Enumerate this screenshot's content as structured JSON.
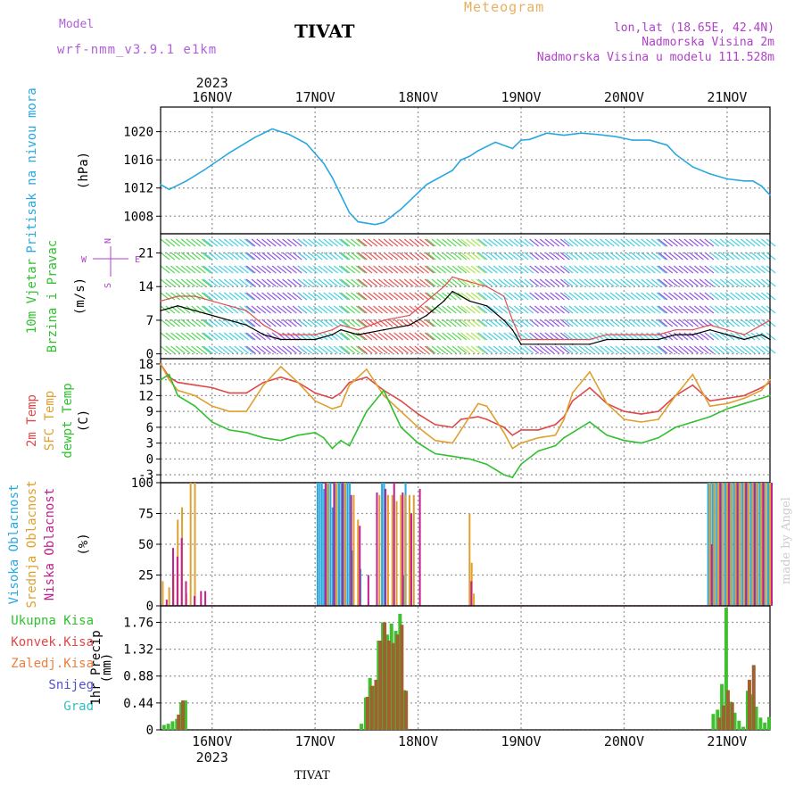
{
  "header": {
    "model_label": "Model",
    "model_name": "wrf-nmm_v3.9.1 e1km",
    "station": "TIVAT",
    "meteogram": "Meteogram",
    "lonlat": "lon,lat (18.65E, 42.4N)",
    "elevation": "Nadmorska Visina 2m",
    "model_elevation": "Nadmorska Visina u modelu 111.528m",
    "credit": "made by Angel",
    "footer_station": "TIVAT"
  },
  "time_axis": {
    "year": "2023",
    "days": [
      "16NOV",
      "17NOV",
      "18NOV",
      "19NOV",
      "20NOV",
      "21NOV"
    ],
    "range_hours": [
      -12,
      130
    ]
  },
  "colors": {
    "pressure": "#29a8e0",
    "wind_speed": "#000000",
    "wind_gust": "#e05050",
    "temp_2m": "#e04848",
    "temp_sfc": "#e0a030",
    "dewpoint": "#30c030",
    "cloud_high": "#29a8e0",
    "cloud_mid": "#e0a030",
    "cloud_low": "#c02090",
    "precip_total": "#40c030",
    "precip_conv": "#a06030",
    "grid": "#999999"
  },
  "chart_data": [
    {
      "type": "line",
      "panel": "pressure",
      "ylabel_lines": [
        "Pritisak na nivou mora"
      ],
      "unit": "(hPa)",
      "ylim": [
        1005.5,
        1023.5
      ],
      "yticks": [
        1008,
        1012,
        1016,
        1020
      ],
      "series": [
        {
          "name": "Pritisak na nivou mora",
          "x": [
            -12,
            -10,
            -6,
            -2,
            4,
            10,
            14,
            18,
            22,
            26,
            28,
            30,
            32,
            34,
            38,
            40,
            44,
            50,
            56,
            58,
            60,
            62,
            66,
            70,
            72,
            74,
            78,
            82,
            86,
            90,
            94,
            98,
            102,
            106,
            108,
            112,
            116,
            120,
            124,
            126,
            128,
            130
          ],
          "y": [
            1012.5,
            1011.8,
            1013,
            1014.5,
            1017,
            1019.2,
            1020.4,
            1019.6,
            1018.3,
            1015.5,
            1013.5,
            1011,
            1008.5,
            1007.2,
            1006.8,
            1007.1,
            1009,
            1012.5,
            1014.5,
            1016,
            1016.5,
            1017.3,
            1018.5,
            1017.6,
            1018.8,
            1018.9,
            1019.8,
            1019.5,
            1019.8,
            1019.6,
            1019.3,
            1018.8,
            1018.8,
            1018.1,
            1016.8,
            1015,
            1014,
            1013.3,
            1013,
            1013,
            1012.3,
            1011
          ]
        }
      ]
    },
    {
      "type": "line",
      "panel": "wind",
      "ylabel_lines": [
        "10m Vjetar",
        "Brzina i Pravac"
      ],
      "unit": "(m/s)",
      "compass": [
        "N",
        "W",
        "E",
        "S"
      ],
      "ylim": [
        -1,
        25
      ],
      "yticks": [
        0,
        7,
        14,
        21
      ],
      "series": [
        {
          "name": "speed",
          "x": [
            -12,
            -8,
            -4,
            0,
            4,
            8,
            12,
            16,
            20,
            24,
            28,
            30,
            34,
            40,
            46,
            50,
            54,
            56,
            60,
            64,
            68,
            70,
            72,
            76,
            80,
            84,
            88,
            92,
            96,
            100,
            104,
            108,
            112,
            116,
            120,
            124,
            128,
            130
          ],
          "y": [
            9,
            10,
            9,
            8,
            7,
            6,
            4,
            3,
            3,
            3,
            4,
            5,
            4,
            5,
            6,
            8,
            11,
            13,
            11,
            10,
            7,
            5,
            2,
            2,
            2,
            2,
            2,
            3,
            3,
            3,
            3,
            4,
            4,
            5,
            4,
            3,
            4,
            3
          ]
        },
        {
          "name": "gust",
          "x": [
            -12,
            -8,
            -4,
            0,
            4,
            8,
            12,
            16,
            20,
            24,
            28,
            30,
            34,
            40,
            46,
            50,
            54,
            56,
            60,
            64,
            68,
            70,
            72,
            76,
            80,
            84,
            88,
            92,
            96,
            100,
            104,
            108,
            112,
            116,
            120,
            124,
            128,
            130
          ],
          "y": [
            11,
            12,
            12,
            11,
            10,
            9,
            6,
            4,
            4,
            4,
            5,
            6,
            5,
            7,
            8,
            11,
            14,
            16,
            15,
            14,
            12,
            7,
            3,
            3,
            3,
            3,
            3,
            4,
            4,
            4,
            4,
            5,
            5,
            6,
            5,
            4,
            6,
            7
          ]
        }
      ]
    },
    {
      "type": "line",
      "panel": "temperature",
      "ylabel_lines": [
        "2m Temp",
        "SFC Temp",
        "dewpt Temp"
      ],
      "unit": "(C)",
      "ylim": [
        -4.5,
        19
      ],
      "yticks": [
        -3,
        0,
        3,
        6,
        9,
        12,
        15,
        18
      ],
      "series": [
        {
          "name": "2m Temp",
          "x": [
            -12,
            -10,
            -8,
            -4,
            0,
            4,
            8,
            12,
            16,
            20,
            24,
            28,
            30,
            32,
            36,
            40,
            44,
            48,
            52,
            56,
            58,
            62,
            64,
            68,
            70,
            72,
            76,
            80,
            82,
            84,
            88,
            92,
            96,
            100,
            104,
            108,
            112,
            116,
            120,
            124,
            128,
            130
          ],
          "y": [
            18,
            15.5,
            14.5,
            14,
            13.5,
            12.5,
            12.5,
            14.5,
            15.5,
            14.5,
            12.5,
            11.5,
            12.5,
            14.5,
            15.5,
            13,
            11,
            8.5,
            6.5,
            6,
            7.5,
            8,
            7.5,
            6,
            4.5,
            5.5,
            5.5,
            6.5,
            8,
            11,
            13.5,
            10.5,
            9,
            8.5,
            9,
            12,
            14,
            11,
            11.5,
            12,
            13.5,
            14.5
          ]
        },
        {
          "name": "SFC Temp",
          "x": [
            -12,
            -10,
            -8,
            -4,
            0,
            4,
            8,
            12,
            16,
            20,
            24,
            28,
            30,
            32,
            36,
            40,
            44,
            48,
            52,
            56,
            58,
            62,
            64,
            68,
            70,
            72,
            76,
            80,
            82,
            84,
            88,
            92,
            96,
            100,
            104,
            108,
            112,
            116,
            120,
            124,
            128,
            130
          ],
          "y": [
            18,
            15,
            13,
            12,
            10,
            9,
            9,
            14,
            17.5,
            14.5,
            11,
            9.5,
            10,
            14,
            17,
            12,
            9,
            6,
            3.5,
            3,
            5.5,
            10.5,
            10,
            5,
            2,
            3,
            4,
            4.5,
            7.5,
            12.5,
            16.5,
            10.5,
            7.5,
            7,
            7.5,
            12,
            16,
            10,
            10.5,
            11.5,
            13,
            15
          ]
        },
        {
          "name": "dewpt Temp",
          "x": [
            -12,
            -10,
            -8,
            -4,
            0,
            4,
            8,
            12,
            16,
            20,
            24,
            26,
            28,
            30,
            32,
            36,
            40,
            44,
            48,
            52,
            56,
            60,
            64,
            68,
            70,
            72,
            76,
            80,
            82,
            84,
            88,
            92,
            96,
            100,
            104,
            108,
            112,
            116,
            120,
            124,
            128,
            130
          ],
          "y": [
            15,
            16,
            12,
            10,
            7,
            5.5,
            5,
            4,
            3.5,
            4.5,
            5,
            4,
            2,
            3.5,
            2.5,
            9,
            13,
            6,
            3,
            1,
            0.5,
            0,
            -1,
            -3,
            -3.5,
            -1,
            1.5,
            2.5,
            4,
            5,
            7,
            4.5,
            3.5,
            3,
            4,
            6,
            7,
            8,
            9.5,
            10.5,
            11.5,
            12
          ]
        }
      ]
    },
    {
      "type": "bar",
      "panel": "clouds",
      "ylabel_lines": [
        "Visoka Oblacnost",
        "Srednja Oblacnost",
        "Niska Oblacnost"
      ],
      "unit": "(%)",
      "ylim": [
        0,
        100
      ],
      "yticks": [
        0,
        25,
        50,
        75,
        100
      ],
      "series": [
        {
          "name": "Visoka Oblacnost",
          "x": [
            25,
            25.5,
            26,
            26.5,
            27,
            27.5,
            28,
            28.5,
            29,
            29.5,
            30,
            30.5,
            31,
            31.5,
            32,
            32.5,
            33,
            35,
            40,
            40.5,
            45,
            45.5,
            116,
            116.5,
            117,
            117.5,
            118,
            118.5,
            119,
            119.5,
            120,
            120.5,
            121,
            121.5,
            122,
            122.5,
            123,
            123.5,
            124,
            124.5,
            125,
            125.5,
            126,
            126.5,
            127,
            127.5,
            128,
            128.5,
            129,
            129.5,
            130
          ],
          "y": [
            100,
            100,
            100,
            95,
            100,
            100,
            100,
            80,
            100,
            100,
            100,
            100,
            100,
            100,
            100,
            100,
            45,
            30,
            100,
            100,
            25,
            100,
            100,
            100,
            100,
            100,
            100,
            100,
            100,
            100,
            100,
            100,
            100,
            100,
            100,
            100,
            100,
            100,
            100,
            100,
            100,
            100,
            100,
            100,
            100,
            100,
            100,
            100,
            100,
            100,
            100
          ]
        },
        {
          "name": "Srednja Oblacnost",
          "x": [
            -11.5,
            -10,
            -9,
            -8,
            -7,
            -6,
            -5,
            -4,
            27,
            29,
            31,
            33,
            34,
            39,
            41,
            42,
            43,
            44,
            45,
            46,
            47,
            60,
            60.5,
            61,
            116,
            117,
            118,
            119,
            120,
            121,
            122,
            123,
            124,
            125,
            126,
            127,
            128,
            129,
            130
          ],
          "y": [
            20,
            15,
            25,
            70,
            80,
            10,
            100,
            100,
            100,
            100,
            100,
            90,
            70,
            90,
            90,
            90,
            85,
            90,
            90,
            90,
            90,
            75,
            35,
            10,
            100,
            100,
            100,
            100,
            100,
            100,
            100,
            100,
            100,
            100,
            100,
            100,
            100,
            100,
            100
          ]
        },
        {
          "name": "Niska Oblacnost",
          "x": [
            -11,
            -9.5,
            -8.5,
            -7.5,
            -6.5,
            -4.5,
            -3,
            -2,
            26,
            28,
            30,
            32,
            34,
            36,
            38,
            40,
            42,
            44,
            46,
            48,
            60,
            116,
            118,
            120,
            122,
            124,
            126,
            128,
            130
          ],
          "y": [
            5,
            47,
            40,
            55,
            20,
            8,
            12,
            12,
            100,
            100,
            100,
            90,
            65,
            25,
            92,
            95,
            100,
            92,
            75,
            95,
            20,
            50,
            100,
            100,
            100,
            100,
            100,
            100,
            100
          ]
        }
      ]
    },
    {
      "type": "bar",
      "panel": "precipitation",
      "ylabel_lines": [
        "1hr Precip"
      ],
      "unit": "(mm)",
      "legend": [
        "Ukupna Kisa",
        "Konvek.Kisa",
        "Zaledj.Kisa",
        "Snijeg",
        "Grad"
      ],
      "ylim": [
        0,
        2.03
      ],
      "yticks": [
        0,
        0.44,
        0.88,
        1.32,
        1.76
      ],
      "series": [
        {
          "name": "Ukupna Kisa",
          "x": [
            -11,
            -10,
            -9,
            -8,
            -7,
            -6,
            35,
            36,
            37,
            38,
            39,
            40,
            41,
            42,
            43,
            44,
            45,
            117,
            118,
            119,
            120,
            121,
            122,
            123,
            124,
            125,
            126,
            127,
            128,
            129,
            130
          ],
          "y": [
            0.08,
            0.1,
            0.14,
            0.18,
            0.45,
            0.48,
            0.1,
            0.53,
            0.85,
            0.72,
            1.46,
            1.76,
            1.56,
            1.74,
            1.62,
            1.9,
            0.65,
            0.26,
            0.33,
            0.75,
            2.0,
            0.46,
            0.28,
            0.15,
            0.05,
            0.64,
            0.58,
            0.38,
            0.2,
            0.12,
            0.21
          ]
        },
        {
          "name": "Konvek.Kisa",
          "x": [
            -8,
            -7,
            36,
            37,
            38,
            39,
            40,
            41,
            42,
            43,
            44,
            45,
            118,
            119,
            120,
            121,
            125,
            126
          ],
          "y": [
            0.25,
            0.48,
            0.54,
            0.72,
            0.82,
            1.46,
            1.76,
            1.46,
            1.42,
            1.56,
            1.72,
            0.64,
            0.2,
            0.4,
            0.65,
            0.45,
            0.82,
            1.06
          ]
        }
      ]
    }
  ]
}
